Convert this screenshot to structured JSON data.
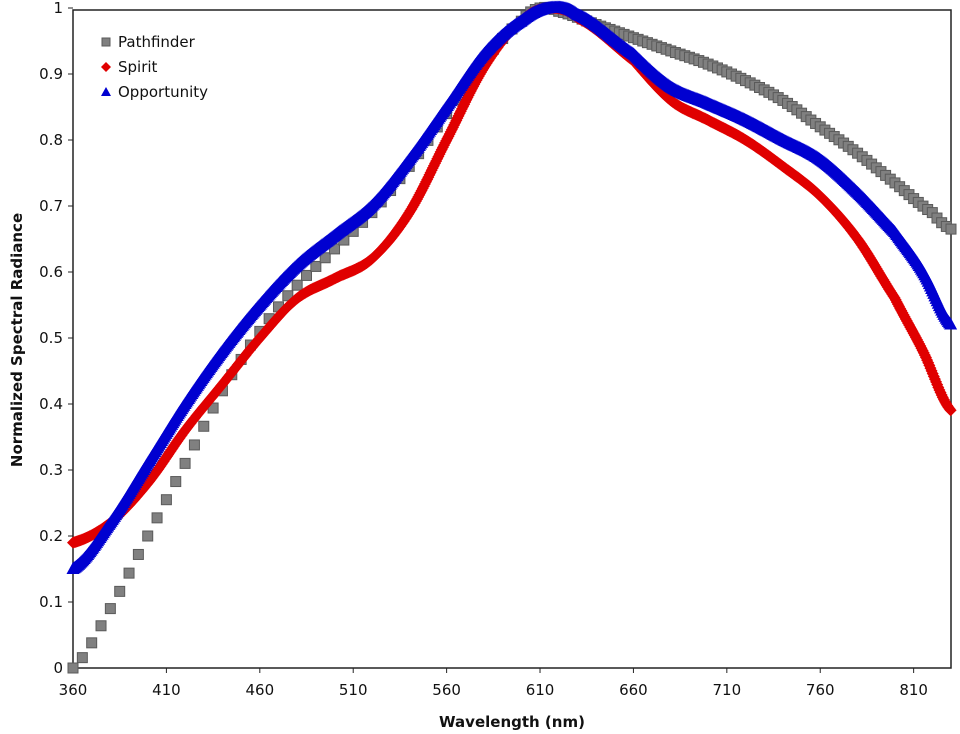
{
  "chart_data": {
    "type": "scatter",
    "title": "",
    "xlabel": "Wavelength (nm)",
    "ylabel": "Normalized Spectral Radiance",
    "xlim": [
      360,
      830
    ],
    "ylim": [
      0,
      1
    ],
    "xticks": [
      360,
      410,
      460,
      510,
      560,
      610,
      660,
      710,
      760,
      810
    ],
    "xtick_labels": [
      "360",
      "410",
      "460",
      "510",
      "560",
      "610",
      "660",
      "710",
      "760",
      "810"
    ],
    "yticks": [
      0,
      0.1,
      0.2,
      0.3,
      0.4,
      0.5,
      0.6,
      0.7,
      0.8,
      0.9,
      1
    ],
    "ytick_labels": [
      "0",
      "0.1",
      "0.2",
      "0.3",
      "0.4",
      "0.5",
      "0.6",
      "0.7",
      "0.8",
      "0.9",
      "1"
    ],
    "grid": false,
    "legend_position": "top-left",
    "series": [
      {
        "name": "Pathfinder",
        "marker": "square",
        "color": "#808080",
        "x": [
          360,
          380,
          400,
          420,
          440,
          460,
          480,
          500,
          520,
          540,
          560,
          580,
          600,
          610,
          620,
          640,
          660,
          680,
          700,
          720,
          740,
          760,
          780,
          800,
          820,
          830
        ],
        "y": [
          0.0,
          0.09,
          0.2,
          0.31,
          0.42,
          0.51,
          0.58,
          0.635,
          0.69,
          0.76,
          0.84,
          0.92,
          0.98,
          1.0,
          0.995,
          0.975,
          0.955,
          0.935,
          0.915,
          0.89,
          0.86,
          0.82,
          0.78,
          0.735,
          0.69,
          0.665
        ]
      },
      {
        "name": "Spirit",
        "marker": "diamond",
        "color": "#e00000",
        "x": [
          360,
          380,
          400,
          420,
          440,
          460,
          480,
          500,
          520,
          540,
          560,
          580,
          600,
          615,
          630,
          660,
          680,
          700,
          720,
          740,
          760,
          780,
          800,
          815,
          830
        ],
        "y": [
          0.19,
          0.22,
          0.28,
          0.36,
          0.43,
          0.5,
          0.56,
          0.59,
          0.62,
          0.69,
          0.8,
          0.91,
          0.98,
          1.0,
          0.985,
          0.92,
          0.86,
          0.83,
          0.8,
          0.76,
          0.715,
          0.65,
          0.56,
          0.48,
          0.39
        ]
      },
      {
        "name": "Opportunity",
        "marker": "triangle",
        "color": "#0000d0",
        "x": [
          360,
          380,
          400,
          420,
          440,
          460,
          480,
          500,
          520,
          540,
          560,
          580,
          600,
          615,
          630,
          660,
          680,
          700,
          720,
          740,
          760,
          780,
          800,
          815,
          830
        ],
        "y": [
          0.15,
          0.22,
          0.31,
          0.4,
          0.48,
          0.55,
          0.61,
          0.655,
          0.7,
          0.77,
          0.85,
          0.93,
          0.98,
          1.0,
          0.99,
          0.93,
          0.88,
          0.855,
          0.83,
          0.8,
          0.77,
          0.72,
          0.66,
          0.6,
          0.52
        ]
      }
    ]
  }
}
